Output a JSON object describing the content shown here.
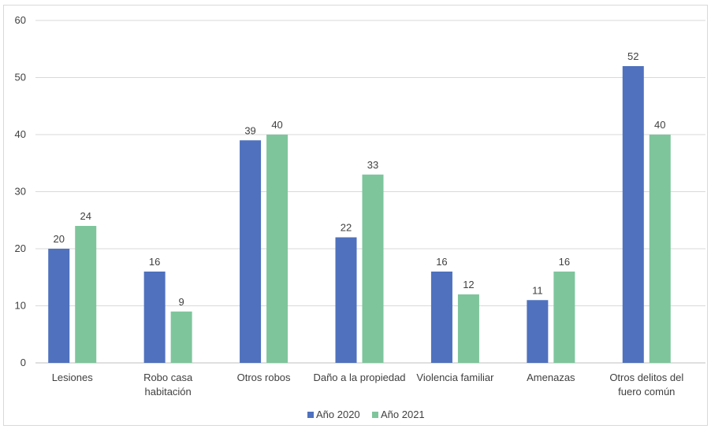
{
  "chart_data": {
    "type": "bar",
    "title": "",
    "xlabel": "",
    "ylabel": "",
    "ylim": [
      0,
      60
    ],
    "yticks": [
      0,
      10,
      20,
      30,
      40,
      50,
      60
    ],
    "grid": true,
    "legend_position": "bottom",
    "categories": [
      [
        "Lesiones"
      ],
      [
        "Robo casa",
        "habitación"
      ],
      [
        "Otros robos"
      ],
      [
        "Daño a la propiedad"
      ],
      [
        "Violencia familiar"
      ],
      [
        "Amenazas"
      ],
      [
        "Otros delitos del",
        "fuero común"
      ]
    ],
    "series": [
      {
        "name": "Año 2020",
        "color": "#4f71be",
        "values": [
          20,
          16,
          39,
          22,
          16,
          11,
          52
        ]
      },
      {
        "name": "Año 2021",
        "color": "#7ec59c",
        "values": [
          24,
          9,
          40,
          33,
          12,
          16,
          40
        ]
      }
    ]
  }
}
